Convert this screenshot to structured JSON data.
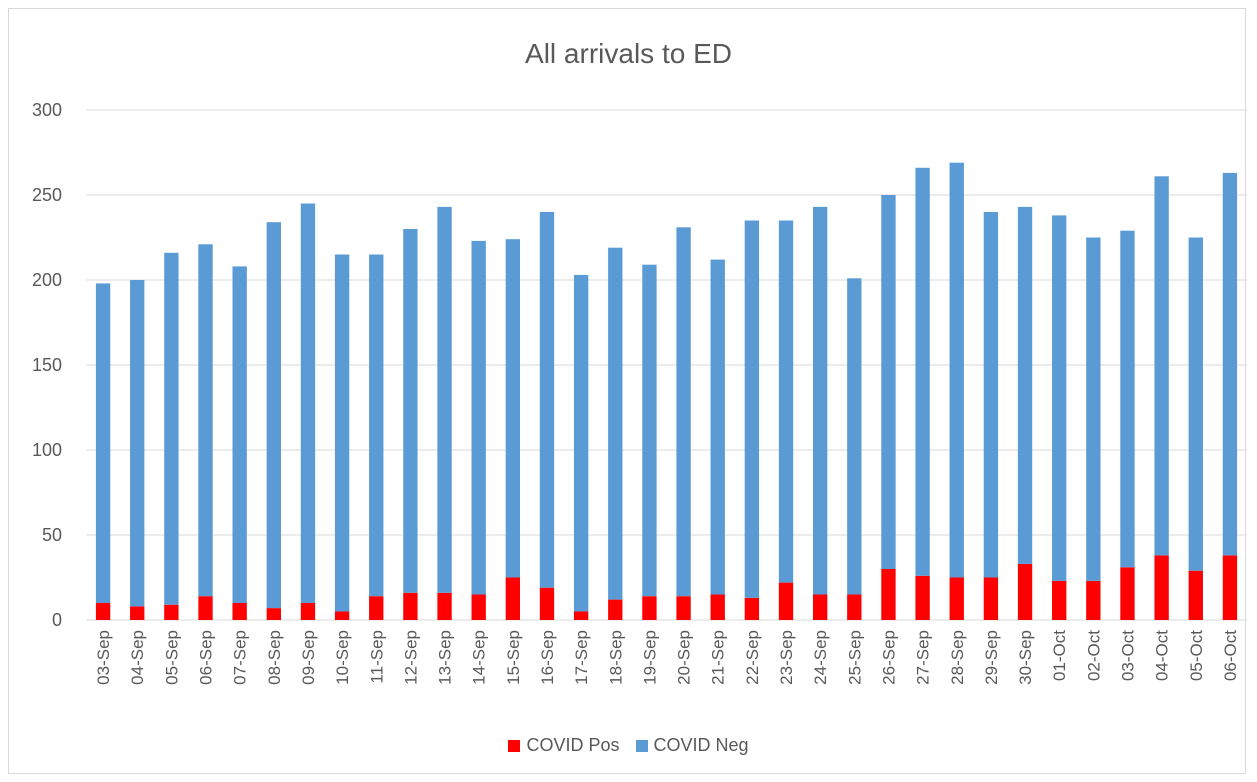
{
  "chart_data": {
    "type": "bar",
    "stacked": true,
    "title": "All arrivals to ED",
    "xlabel": "",
    "ylabel": "",
    "ylim": [
      0,
      300
    ],
    "yticks": [
      0,
      50,
      100,
      150,
      200,
      250,
      300
    ],
    "grid": true,
    "legend_position": "bottom",
    "categories": [
      "03-Sep",
      "04-Sep",
      "05-Sep",
      "06-Sep",
      "07-Sep",
      "08-Sep",
      "09-Sep",
      "10-Sep",
      "11-Sep",
      "12-Sep",
      "13-Sep",
      "14-Sep",
      "15-Sep",
      "16-Sep",
      "17-Sep",
      "18-Sep",
      "19-Sep",
      "20-Sep",
      "21-Sep",
      "22-Sep",
      "23-Sep",
      "24-Sep",
      "25-Sep",
      "26-Sep",
      "27-Sep",
      "28-Sep",
      "29-Sep",
      "30-Sep",
      "01-Oct",
      "02-Oct",
      "03-Oct",
      "04-Oct",
      "05-Oct",
      "06-Oct"
    ],
    "series": [
      {
        "name": "COVID Pos",
        "color": "#ff0000",
        "values": [
          10,
          8,
          9,
          14,
          10,
          7,
          10,
          5,
          14,
          16,
          16,
          15,
          25,
          19,
          5,
          12,
          14,
          14,
          15,
          13,
          22,
          15,
          15,
          30,
          26,
          25,
          25,
          33,
          23,
          23,
          31,
          38,
          29,
          38
        ]
      },
      {
        "name": "COVID Neg",
        "color": "#5b9bd5",
        "values": [
          188,
          192,
          207,
          207,
          198,
          227,
          235,
          210,
          201,
          214,
          227,
          208,
          199,
          221,
          198,
          207,
          195,
          217,
          197,
          222,
          213,
          228,
          186,
          220,
          240,
          244,
          215,
          210,
          215,
          202,
          198,
          223,
          196,
          225
        ]
      }
    ]
  }
}
